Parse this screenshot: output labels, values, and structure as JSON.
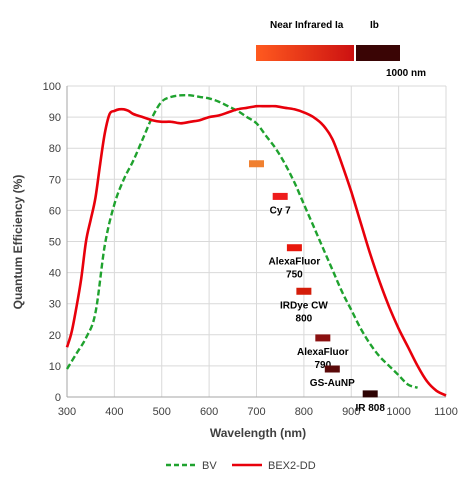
{
  "chart_data": {
    "type": "line",
    "title": "",
    "xlabel": "Wavelength (nm)",
    "ylabel": "Quantum Efficiency (%)",
    "xlim": [
      300,
      1100
    ],
    "ylim": [
      0,
      100
    ],
    "x_ticks": [
      300,
      400,
      500,
      600,
      700,
      800,
      900,
      1000,
      1100
    ],
    "y_ticks": [
      0,
      10,
      20,
      30,
      40,
      50,
      60,
      70,
      80,
      90,
      100
    ],
    "grid": true,
    "legend_position": "bottom",
    "series": [
      {
        "name": "BV",
        "color": "#1fa22e",
        "style": "dashed",
        "x": [
          300,
          320,
          340,
          360,
          380,
          400,
          420,
          440,
          460,
          480,
          500,
          520,
          540,
          560,
          580,
          600,
          620,
          640,
          660,
          680,
          700,
          720,
          740,
          760,
          780,
          800,
          820,
          840,
          860,
          880,
          900,
          920,
          940,
          960,
          980,
          1000,
          1020,
          1040
        ],
        "values": [
          9,
          14,
          19,
          27,
          49,
          62,
          70,
          76,
          83,
          90,
          95,
          96.5,
          97,
          97,
          96.5,
          96,
          95,
          93.5,
          92,
          90,
          88,
          84,
          80,
          75,
          69,
          62,
          55,
          48,
          41,
          34,
          28,
          22,
          17,
          13,
          10,
          7,
          4,
          3
        ]
      },
      {
        "name": "BEX2-DD",
        "color": "#e8000b",
        "style": "solid",
        "x": [
          300,
          310,
          320,
          330,
          340,
          350,
          360,
          370,
          380,
          390,
          400,
          410,
          420,
          430,
          440,
          460,
          480,
          500,
          520,
          540,
          560,
          580,
          600,
          620,
          640,
          660,
          680,
          700,
          720,
          740,
          760,
          780,
          800,
          820,
          840,
          860,
          880,
          900,
          920,
          940,
          960,
          980,
          1000,
          1020,
          1040,
          1060,
          1080,
          1100
        ],
        "values": [
          16,
          21,
          29,
          38,
          50,
          57,
          64,
          75,
          85,
          91,
          92,
          92.5,
          92.5,
          92,
          91,
          90,
          89,
          88.5,
          88.5,
          88,
          88.5,
          89,
          90,
          90.5,
          91.5,
          92.5,
          93,
          93.5,
          93.5,
          93.5,
          93,
          92.5,
          91.5,
          90,
          87.5,
          83,
          75,
          66,
          56,
          46,
          37,
          29,
          22,
          16,
          10,
          5,
          2,
          0.5
        ]
      }
    ],
    "markers": [
      {
        "label": "",
        "x": 700,
        "y": 75,
        "color": "#f08030"
      },
      {
        "label": "Cy 7",
        "x": 750,
        "y": 64.5,
        "color": "#ee1c1c"
      },
      {
        "label": "AlexaFluor 750",
        "x": 780,
        "y": 48,
        "color": "#e8170c"
      },
      {
        "label": "IRDye CW 800",
        "x": 800,
        "y": 34,
        "color": "#d41d0a"
      },
      {
        "label": "AlexaFluor 790",
        "x": 840,
        "y": 19,
        "color": "#8b1010"
      },
      {
        "label": "GS-AuNP",
        "x": 860,
        "y": 9,
        "color": "#5b0a0a"
      },
      {
        "label": "IR 808",
        "x": 940,
        "y": 1,
        "color": "#2d0303"
      }
    ],
    "spectrum_bar": {
      "label_a": "Near Infrared Ia",
      "label_b": "Ib",
      "end_label": "1000 nm",
      "color_start": "#ff5a1f",
      "color_mid": "#cc1111",
      "color_end": "#3a0505"
    }
  }
}
